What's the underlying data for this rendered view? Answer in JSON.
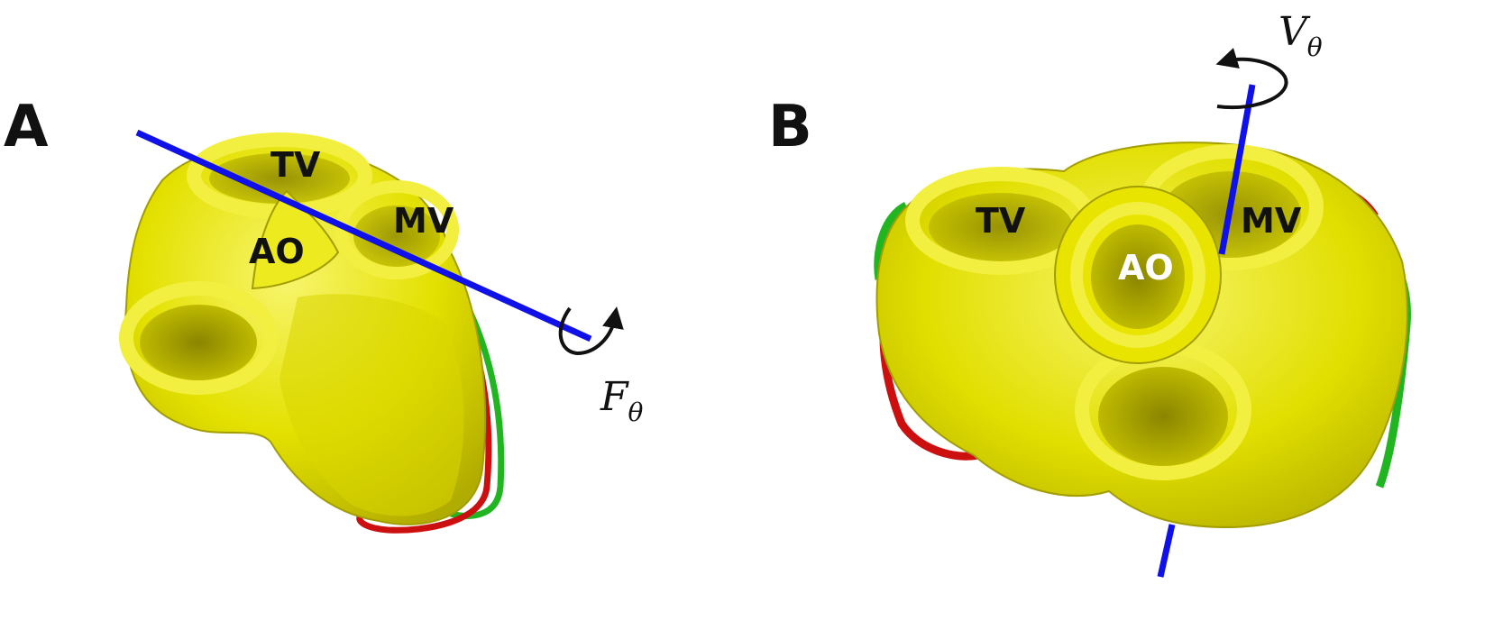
{
  "panels": [
    {
      "letter": "A",
      "labels": {
        "tv": "TV",
        "ao": "AO",
        "mv": "MV"
      },
      "rotation": {
        "symbol": "F",
        "subscript": "θ"
      }
    },
    {
      "letter": "B",
      "labels": {
        "tv": "TV",
        "ao": "AO",
        "mv": "MV"
      },
      "rotation": {
        "symbol": "V",
        "subscript": "θ"
      }
    }
  ],
  "colors": {
    "mesh": "#e3e000",
    "mesh_dark": "#a9a400",
    "mesh_light": "#f6f36a",
    "axis": "#1010e8",
    "contour_red": "#cc1010",
    "contour_green": "#22b522",
    "text_dark": "#111111",
    "text_light": "#ffffff"
  }
}
